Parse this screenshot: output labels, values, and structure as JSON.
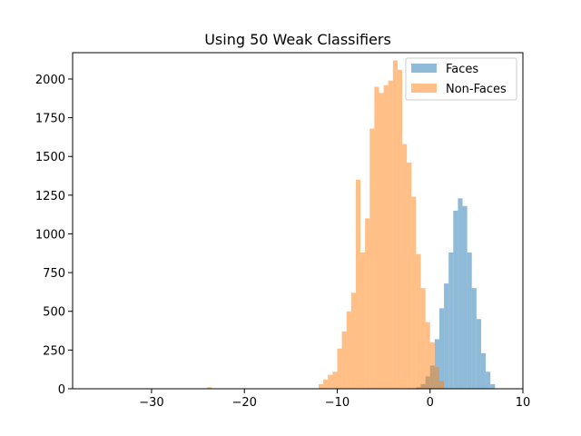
{
  "chart_data": {
    "type": "histogram",
    "title": "Using 50 Weak Classifiers",
    "xlabel": "",
    "ylabel": "",
    "xlim": [
      -38.5,
      10
    ],
    "ylim": [
      0,
      2170
    ],
    "x_ticks": [
      -30,
      -20,
      -10,
      0,
      10
    ],
    "x_tick_labels": [
      "−30",
      "−20",
      "−10",
      "0",
      "10"
    ],
    "y_ticks": [
      0,
      250,
      500,
      750,
      1000,
      1250,
      1500,
      1750,
      2000
    ],
    "y_tick_labels": [
      "0",
      "250",
      "500",
      "750",
      "1000",
      "1250",
      "1500",
      "1750",
      "2000"
    ],
    "grid": false,
    "legend_position": "top-right",
    "series": [
      {
        "name": "Faces",
        "color": "#1f77b4",
        "opacity": 0.5,
        "bin_edges": [
          -1.5,
          -1.0,
          -0.5,
          0.0,
          0.5,
          1.0,
          1.5,
          2.0,
          2.5,
          3.0,
          3.5,
          4.0,
          4.5,
          5.0,
          5.5,
          6.0,
          6.5,
          7.0
        ],
        "counts": [
          10,
          30,
          80,
          150,
          320,
          520,
          680,
          880,
          1150,
          1230,
          1180,
          880,
          650,
          450,
          230,
          110,
          30
        ]
      },
      {
        "name": "Non-Faces",
        "color": "#ff7f0e",
        "opacity": 0.5,
        "bin_edges": [
          -24.0,
          -23.5,
          -12.0,
          -11.5,
          -11.0,
          -10.5,
          -10.0,
          -9.5,
          -9.0,
          -8.5,
          -8.0,
          -7.5,
          -7.0,
          -6.5,
          -6.0,
          -5.5,
          -5.0,
          -4.5,
          -4.0,
          -3.5,
          -3.0,
          -2.5,
          -2.0,
          -1.5,
          -1.0,
          -0.5,
          0.0,
          0.5,
          1.0,
          1.5
        ],
        "counts": [
          10,
          0,
          30,
          60,
          90,
          110,
          260,
          370,
          500,
          620,
          1350,
          880,
          1100,
          1680,
          1950,
          1910,
          1960,
          1990,
          2120,
          2060,
          1580,
          1460,
          1240,
          870,
          650,
          430,
          300,
          140,
          50
        ]
      }
    ]
  }
}
